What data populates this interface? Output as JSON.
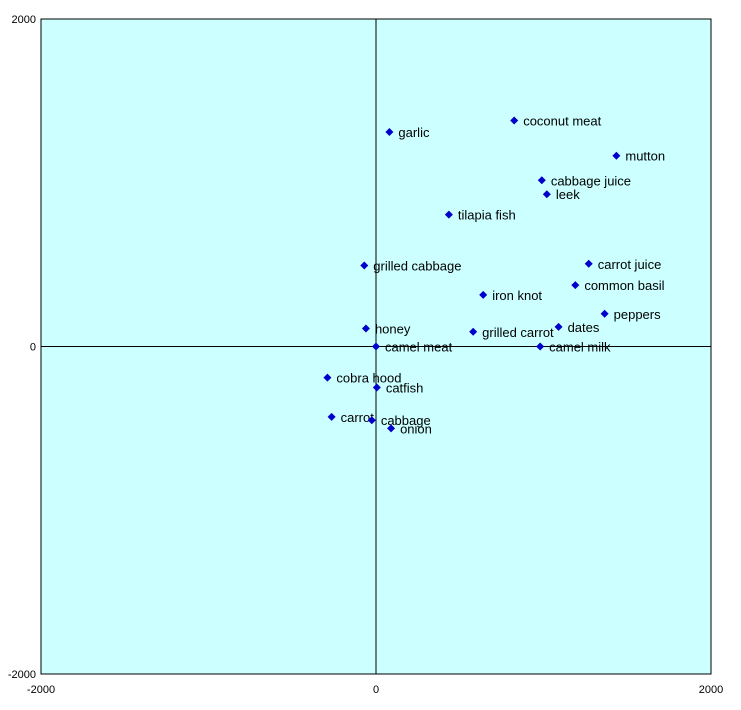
{
  "colors": {
    "plot_background": "#ccffff",
    "marker": "#0000cc",
    "axis": "#000000"
  },
  "chart_data": {
    "type": "scatter",
    "title": "",
    "xlabel": "",
    "ylabel": "",
    "xlim": [
      -2000,
      2000
    ],
    "ylim": [
      -2000,
      2000
    ],
    "grid": false,
    "legend": "none",
    "x_tick_labels": [
      "-2000",
      "0",
      "2000"
    ],
    "y_tick_labels": [
      "2000",
      "0",
      "-2000"
    ],
    "points": [
      {
        "label": "coconut meat",
        "x": 825,
        "y": 1380
      },
      {
        "label": "garlic",
        "x": 80,
        "y": 1310
      },
      {
        "label": "mutton",
        "x": 1435,
        "y": 1165
      },
      {
        "label": "cabbage juice",
        "x": 990,
        "y": 1015
      },
      {
        "label": "leek",
        "x": 1020,
        "y": 930
      },
      {
        "label": "tilapia fish",
        "x": 435,
        "y": 805
      },
      {
        "label": "grilled cabbage",
        "x": -70,
        "y": 495
      },
      {
        "label": "carrot juice",
        "x": 1270,
        "y": 505
      },
      {
        "label": "common basil",
        "x": 1190,
        "y": 375
      },
      {
        "label": "iron knot",
        "x": 640,
        "y": 315
      },
      {
        "label": "peppers",
        "x": 1365,
        "y": 200
      },
      {
        "label": "dates",
        "x": 1090,
        "y": 120
      },
      {
        "label": "honey",
        "x": -60,
        "y": 110
      },
      {
        "label": "grilled carrot",
        "x": 580,
        "y": 90
      },
      {
        "label": "camel meat",
        "x": 0,
        "y": 0
      },
      {
        "label": "camel milk",
        "x": 980,
        "y": 0
      },
      {
        "label": "cobra hood",
        "x": -290,
        "y": -190
      },
      {
        "label": "catfish",
        "x": 5,
        "y": -250
      },
      {
        "label": "carrot",
        "x": -265,
        "y": -430
      },
      {
        "label": "cabbage",
        "x": -25,
        "y": -450
      },
      {
        "label": "onion",
        "x": 90,
        "y": -500
      }
    ]
  }
}
